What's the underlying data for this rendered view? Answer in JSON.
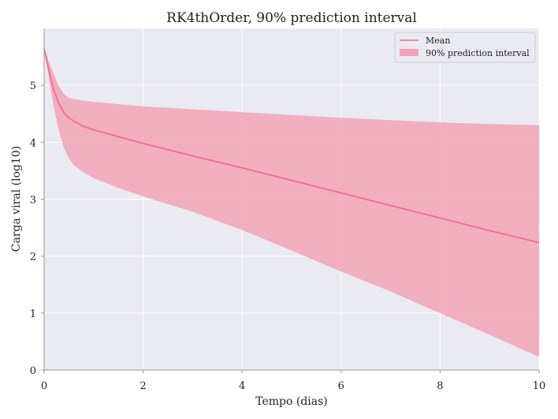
{
  "chart_data": {
    "type": "line",
    "title": "RK4thOrder, 90% prediction interval",
    "xlabel": "Tempo (dias)",
    "ylabel": "Carga viral (log10)",
    "xlim": [
      0,
      10
    ],
    "ylim": [
      0,
      6.0
    ],
    "xticks": [
      0,
      2,
      4,
      6,
      8,
      10
    ],
    "yticks": [
      0,
      1,
      2,
      3,
      4,
      5
    ],
    "grid": true,
    "legend_position": "top-right",
    "colors": {
      "mean": "#f46d84",
      "band": "#f2a3b6",
      "background": "#eaeaf2",
      "grid": "#ffffff",
      "axis": "#999999"
    },
    "series": [
      {
        "name": "Mean",
        "kind": "line",
        "x": [
          0,
          0.1,
          0.2,
          0.3,
          0.4,
          0.5,
          0.6,
          0.8,
          1.0,
          1.5,
          2,
          3,
          4,
          5,
          6,
          7,
          8,
          9,
          10
        ],
        "y": [
          5.65,
          5.25,
          4.9,
          4.68,
          4.52,
          4.43,
          4.37,
          4.28,
          4.22,
          4.1,
          3.98,
          3.76,
          3.55,
          3.33,
          3.11,
          2.89,
          2.67,
          2.45,
          2.24
        ]
      },
      {
        "name": "90% prediction interval",
        "kind": "band",
        "x": [
          0,
          0.1,
          0.2,
          0.3,
          0.4,
          0.5,
          0.6,
          0.8,
          1.0,
          1.5,
          2,
          3,
          4,
          5,
          6,
          7,
          8,
          9,
          10
        ],
        "lower": [
          5.65,
          5.1,
          4.6,
          4.2,
          3.9,
          3.72,
          3.6,
          3.47,
          3.37,
          3.2,
          3.05,
          2.78,
          2.46,
          2.1,
          1.73,
          1.38,
          1.0,
          0.62,
          0.23
        ],
        "upper": [
          5.65,
          5.4,
          5.18,
          4.98,
          4.85,
          4.78,
          4.76,
          4.73,
          4.71,
          4.67,
          4.63,
          4.58,
          4.53,
          4.48,
          4.43,
          4.39,
          4.35,
          4.32,
          4.3
        ]
      }
    ]
  }
}
